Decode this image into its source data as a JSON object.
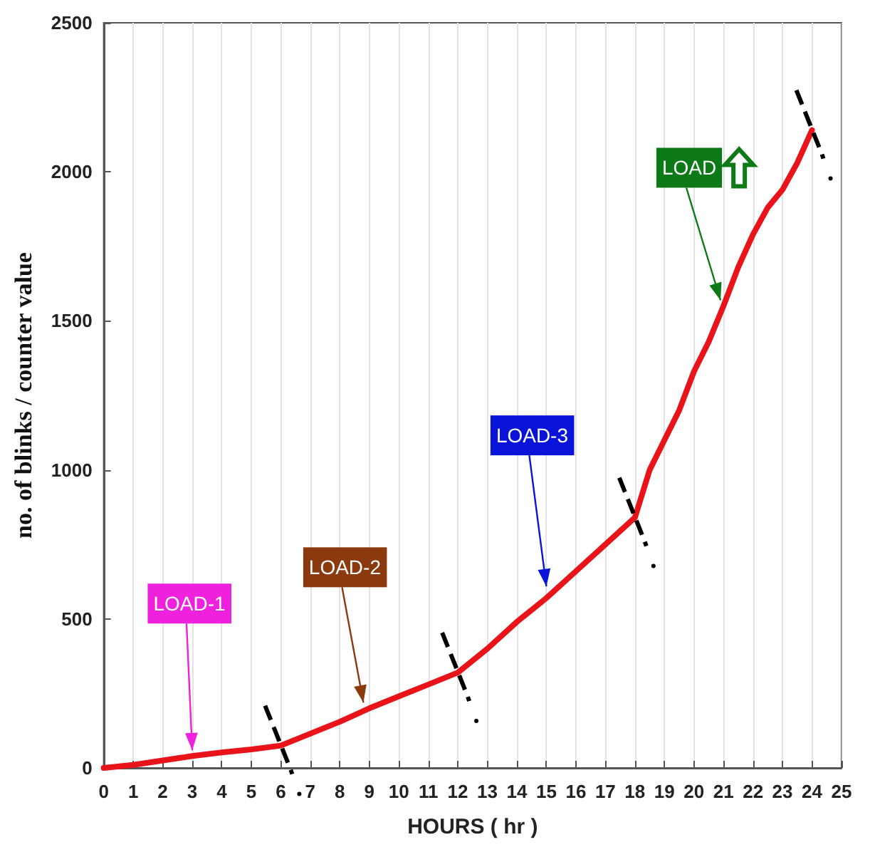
{
  "chart_data": {
    "type": "line",
    "xlabel": "HOURS ( hr )",
    "ylabel": "no. of blinks / counter value",
    "x": [
      0,
      1,
      2,
      3,
      4,
      5,
      6,
      7,
      8,
      9,
      10,
      11,
      12,
      13,
      14,
      15,
      16,
      17,
      18,
      18.5,
      19,
      19.5,
      20,
      20.5,
      21,
      21.5,
      22,
      22.5,
      23,
      23.5,
      24
    ],
    "series": [
      {
        "color": "#e8141a",
        "values": [
          0,
          10,
          25,
          40,
          52,
          62,
          75,
          115,
          155,
          200,
          240,
          280,
          320,
          400,
          490,
          570,
          660,
          750,
          840,
          1000,
          1100,
          1200,
          1330,
          1430,
          1550,
          1680,
          1790,
          1880,
          1940,
          2030,
          2140
        ]
      }
    ],
    "xlim": [
      0,
      25
    ],
    "xticks": [
      0,
      1,
      2,
      3,
      4,
      5,
      6,
      7,
      8,
      9,
      10,
      11,
      12,
      13,
      14,
      15,
      16,
      17,
      18,
      19,
      20,
      21,
      22,
      23,
      24,
      25
    ],
    "ylim": [
      0,
      2500
    ],
    "yticks": [
      0,
      500,
      1000,
      1500,
      2000,
      2500
    ],
    "grid": "x",
    "marker": "none",
    "line_style": "solid",
    "annotations": [
      {
        "text": "LOAD-1",
        "x": 3,
        "y": 40
      },
      {
        "text": "LOAD-2",
        "x": 8.8,
        "y": 200
      },
      {
        "text": "LOAD-3",
        "x": 15,
        "y": 590
      },
      {
        "text": "LOAD",
        "x": 20.9,
        "y": 1550
      }
    ]
  }
}
